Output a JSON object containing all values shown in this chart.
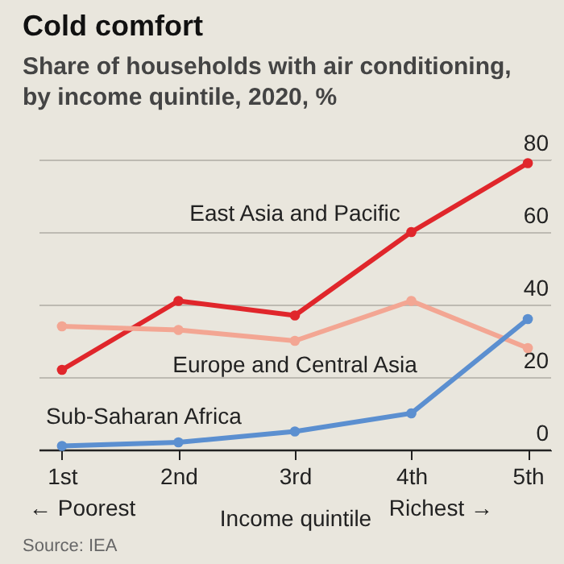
{
  "chart_data": {
    "type": "line",
    "title": "Cold comfort",
    "subtitle": "Share of households with air conditioning, by income quintile, 2020, %",
    "xlabel": "Income quintile",
    "categories": [
      "1st",
      "2nd",
      "3rd",
      "4th",
      "5th"
    ],
    "series": [
      {
        "name": "East Asia and Pacific",
        "color": "#e0262b",
        "values": [
          22,
          41,
          37,
          60,
          79
        ]
      },
      {
        "name": "Europe and Central Asia",
        "color": "#f3a693",
        "values": [
          34,
          33,
          30,
          41,
          28
        ]
      },
      {
        "name": "Sub-Saharan Africa",
        "color": "#5b8fd0",
        "values": [
          1,
          2,
          5,
          10,
          36
        ]
      }
    ],
    "ylim": [
      0,
      80
    ],
    "yticks": [
      0,
      20,
      40,
      60,
      80
    ],
    "grid": "y",
    "marker": "circle",
    "line_style": "solid",
    "annotations": [
      "← Poorest",
      "Richest →",
      "Source: IEA"
    ]
  }
}
